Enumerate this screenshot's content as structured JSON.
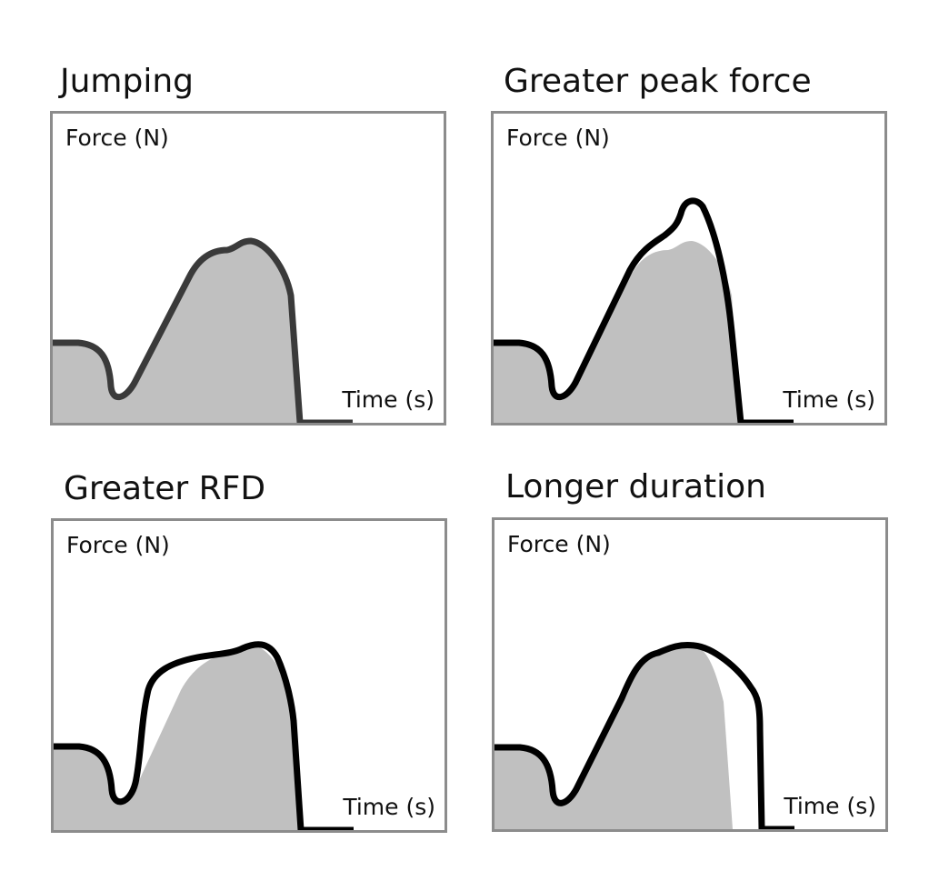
{
  "panels": [
    {
      "title": "Jumping",
      "ylabel": "Force (N)",
      "xlabel": "Time (s)",
      "variant": "jumping"
    },
    {
      "title": "Greater peak force",
      "ylabel": "Force (N)",
      "xlabel": "Time (s)",
      "variant": "peak_force"
    },
    {
      "title": "Greater RFD",
      "ylabel": "Force (N)",
      "xlabel": "Time (s)",
      "variant": "rfd"
    },
    {
      "title": "Longer duration",
      "ylabel": "Force (N)",
      "xlabel": "Time (s)",
      "variant": "duration"
    }
  ],
  "colors": {
    "fill": "#c0c0c0",
    "baseline_line": "#3a3a3a",
    "variant_line": "#000000",
    "border": "#8c8c8c"
  }
}
